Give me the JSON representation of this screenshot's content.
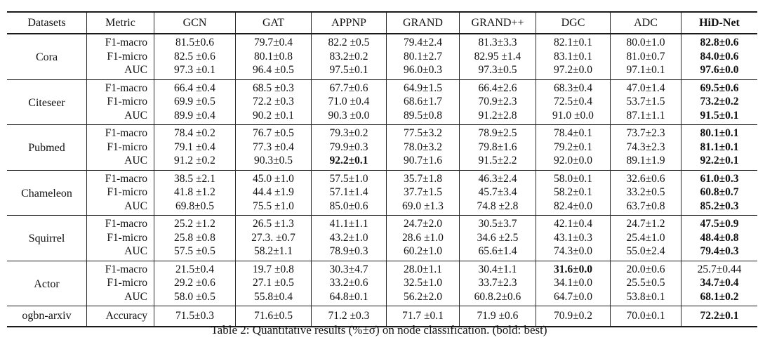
{
  "table": {
    "caption": "Table 2: Quantitative results (%±σ) on node classification. (bold: best)",
    "columns": [
      "Datasets",
      "Metric",
      "GCN",
      "GAT",
      "APPNP",
      "GRAND",
      "GRAND++",
      "DGC",
      "ADC",
      "HiD-Net"
    ],
    "groups": [
      {
        "dataset": "Cora",
        "rows": [
          {
            "metric": "F1-macro",
            "values": [
              "81.5±0.6",
              "79.7±0.4",
              "82.2 ±0.5",
              "79.4±2.4",
              "81.3±3.3",
              "82.1±0.1",
              "80.0±1.0",
              "82.8±0.6"
            ],
            "bold": [
              7
            ]
          },
          {
            "metric": "F1-micro",
            "values": [
              "82.5 ±0.6",
              "80.1±0.8",
              "83.2±0.2",
              "80.1±2.7",
              "82.95 ±1.4",
              "83.1±0.1",
              "81.0±0.7",
              "84.0±0.6"
            ],
            "bold": [
              7
            ]
          },
          {
            "metric": "AUC",
            "values": [
              "97.3 ±0.1",
              "96.4 ±0.5",
              "97.5±0.1",
              "96.0±0.3",
              "97.3±0.5",
              "97.2±0.0",
              "97.1±0.1",
              "97.6±0.0"
            ],
            "bold": [
              7
            ]
          }
        ]
      },
      {
        "dataset": "Citeseer",
        "rows": [
          {
            "metric": "F1-macro",
            "values": [
              "66.4 ±0.4",
              "68.5 ±0.3",
              "67.7±0.6",
              "64.9±1.5",
              "66.4±2.6",
              "68.3±0.4",
              "47.0±1.4",
              "69.5±0.6"
            ],
            "bold": [
              7
            ]
          },
          {
            "metric": "F1-micro",
            "values": [
              "69.9 ±0.5",
              "72.2 ±0.3",
              "71.0 ±0.4",
              "68.6±1.7",
              "70.9±2.3",
              "72.5±0.4",
              "53.7±1.5",
              "73.2±0.2"
            ],
            "bold": [
              7
            ]
          },
          {
            "metric": "AUC",
            "values": [
              "89.9 ±0.4",
              "90.2 ±0.1",
              "90.3 ±0.0",
              "89.5±0.8",
              "91.2±2.8",
              "91.0 ±0.0",
              "87.1±1.1",
              "91.5±0.1"
            ],
            "bold": [
              7
            ]
          }
        ]
      },
      {
        "dataset": "Pubmed",
        "rows": [
          {
            "metric": "F1-macro",
            "values": [
              "78.4 ±0.2",
              "76.7 ±0.5",
              "79.3±0.2",
              "77.5±3.2",
              "78.9±2.5",
              "78.4±0.1",
              "73.7±2.3",
              "80.1±0.1"
            ],
            "bold": [
              7
            ]
          },
          {
            "metric": "F1-micro",
            "values": [
              "79.1 ±0.4",
              "77.3 ±0.4",
              "79.9±0.3",
              "78.0±3.2",
              "79.8±1.6",
              "79.2±0.1",
              "74.3±2.3",
              "81.1±0.1"
            ],
            "bold": [
              7
            ]
          },
          {
            "metric": "AUC",
            "values": [
              "91.2 ±0.2",
              "90.3±0.5",
              "92.2±0.1",
              "90.7±1.6",
              "91.5±2.2",
              "92.0±0.0",
              "89.1±1.9",
              "92.2±0.1"
            ],
            "bold": [
              2,
              7
            ]
          }
        ]
      },
      {
        "dataset": "Chameleon",
        "rows": [
          {
            "metric": "F1-macro",
            "values": [
              "38.5 ±2.1",
              "45.0 ±1.0",
              "57.5±1.0",
              "35.7±1.8",
              "46.3±2.4",
              "58.0±0.1",
              "32.6±0.6",
              "61.0±0.3"
            ],
            "bold": [
              7
            ]
          },
          {
            "metric": "F1-micro",
            "values": [
              "41.8 ±1.2",
              "44.4 ±1.9",
              "57.1±1.4",
              "37.7±1.5",
              "45.7±3.4",
              "58.2±0.1",
              "33.2±0.5",
              "60.8±0.7"
            ],
            "bold": [
              7
            ]
          },
          {
            "metric": "AUC",
            "values": [
              "69.8±0.5",
              "75.5 ±1.0",
              "85.0±0.6",
              "69.0 ±1.3",
              "74.8 ±2.8",
              "82.4±0.0",
              "63.7±0.8",
              "85.2±0.3"
            ],
            "bold": [
              7
            ]
          }
        ]
      },
      {
        "dataset": "Squirrel",
        "rows": [
          {
            "metric": "F1-macro",
            "values": [
              "25.2 ±1.2",
              "26.5 ±1.3",
              "41.1±1.1",
              "24.7±2.0",
              "30.5±3.7",
              "42.1±0.4",
              "24.7±1.2",
              "47.5±0.9"
            ],
            "bold": [
              7
            ]
          },
          {
            "metric": "F1-micro",
            "values": [
              "25.8 ±0.8",
              "27.3. ±0.7",
              "43.2±1.0",
              "28.6 ±1.0",
              "34.6 ±2.5",
              "43.1±0.3",
              "25.4±1.0",
              "48.4±0.8"
            ],
            "bold": [
              7
            ]
          },
          {
            "metric": "AUC",
            "values": [
              "57.5 ±0.5",
              "58.2±1.1",
              "78.9±0.3",
              "60.2±1.0",
              "65.6±1.4",
              "74.3±0.0",
              "55.0±2.4",
              "79.4±0.3"
            ],
            "bold": [
              7
            ]
          }
        ]
      },
      {
        "dataset": "Actor",
        "rows": [
          {
            "metric": "F1-macro",
            "values": [
              "21.5±0.4",
              "19.7 ±0.8",
              "30.3±4.7",
              "28.0±1.1",
              "30.4±1.1",
              "31.6±0.0",
              "20.0±0.6",
              "25.7±0.44"
            ],
            "bold": [
              5
            ]
          },
          {
            "metric": "F1-micro",
            "values": [
              "29.2 ±0.6",
              "27.1 ±0.5",
              "33.2±0.6",
              "32.5±1.0",
              "33.7±2.3",
              "34.1±0.0",
              "25.5±0.5",
              "34.7±0.4"
            ],
            "bold": [
              7
            ]
          },
          {
            "metric": "AUC",
            "values": [
              "58.0 ±0.5",
              "55.8±0.4",
              "64.8±0.1",
              "56.2±2.0",
              "60.8.2±0.6",
              "64.7±0.0",
              "53.8±0.1",
              "68.1±0.2"
            ],
            "bold": [
              7
            ]
          }
        ]
      },
      {
        "dataset": "ogbn-arxiv",
        "rows": [
          {
            "metric": "Accuracy",
            "values": [
              "71.5±0.3",
              "71.6±0.5",
              "71.2 ±0.3",
              "71.7 ±0.1",
              "71.9 ±0.6",
              "70.9±0.2",
              "70.0±0.1",
              "72.2±0.1"
            ],
            "bold": [
              7
            ]
          }
        ]
      }
    ]
  }
}
